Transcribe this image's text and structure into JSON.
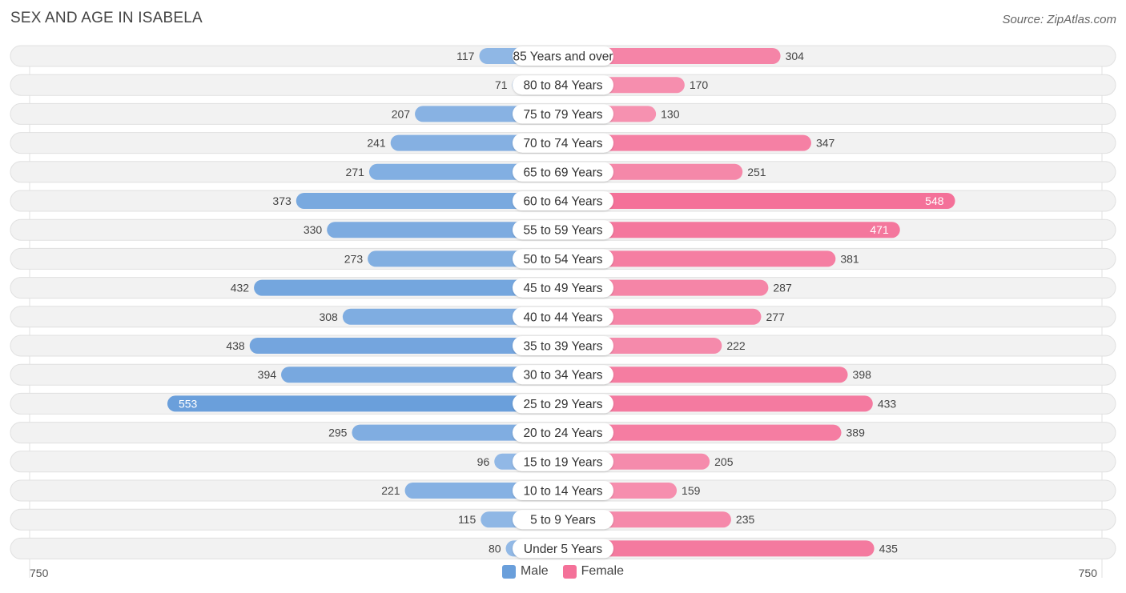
{
  "title": "SEX AND AGE IN ISABELA",
  "source": "Source: ZipAtlas.com",
  "colors": {
    "male": "#6a9fdb",
    "male_light": "#a9c8ec",
    "female": "#f47199",
    "female_light": "#f7a8c1"
  },
  "legend": {
    "male": "Male",
    "female": "Female"
  },
  "axis": {
    "left_label": "750",
    "right_label": "750"
  },
  "chart_data": {
    "type": "bar",
    "orientation": "horizontal-diverging",
    "title": "SEX AND AGE IN ISABELA",
    "xlim": [
      -750,
      750
    ],
    "categories": [
      "85 Years and over",
      "80 to 84 Years",
      "75 to 79 Years",
      "70 to 74 Years",
      "65 to 69 Years",
      "60 to 64 Years",
      "55 to 59 Years",
      "50 to 54 Years",
      "45 to 49 Years",
      "40 to 44 Years",
      "35 to 39 Years",
      "30 to 34 Years",
      "25 to 29 Years",
      "20 to 24 Years",
      "15 to 19 Years",
      "10 to 14 Years",
      "5 to 9 Years",
      "Under 5 Years"
    ],
    "series": [
      {
        "name": "Male",
        "values": [
          117,
          71,
          207,
          241,
          271,
          373,
          330,
          273,
          432,
          308,
          438,
          394,
          553,
          295,
          96,
          221,
          115,
          80
        ]
      },
      {
        "name": "Female",
        "values": [
          304,
          170,
          130,
          347,
          251,
          548,
          471,
          381,
          287,
          277,
          222,
          398,
          433,
          389,
          205,
          159,
          235,
          435
        ]
      }
    ],
    "legend_position": "bottom-center"
  }
}
